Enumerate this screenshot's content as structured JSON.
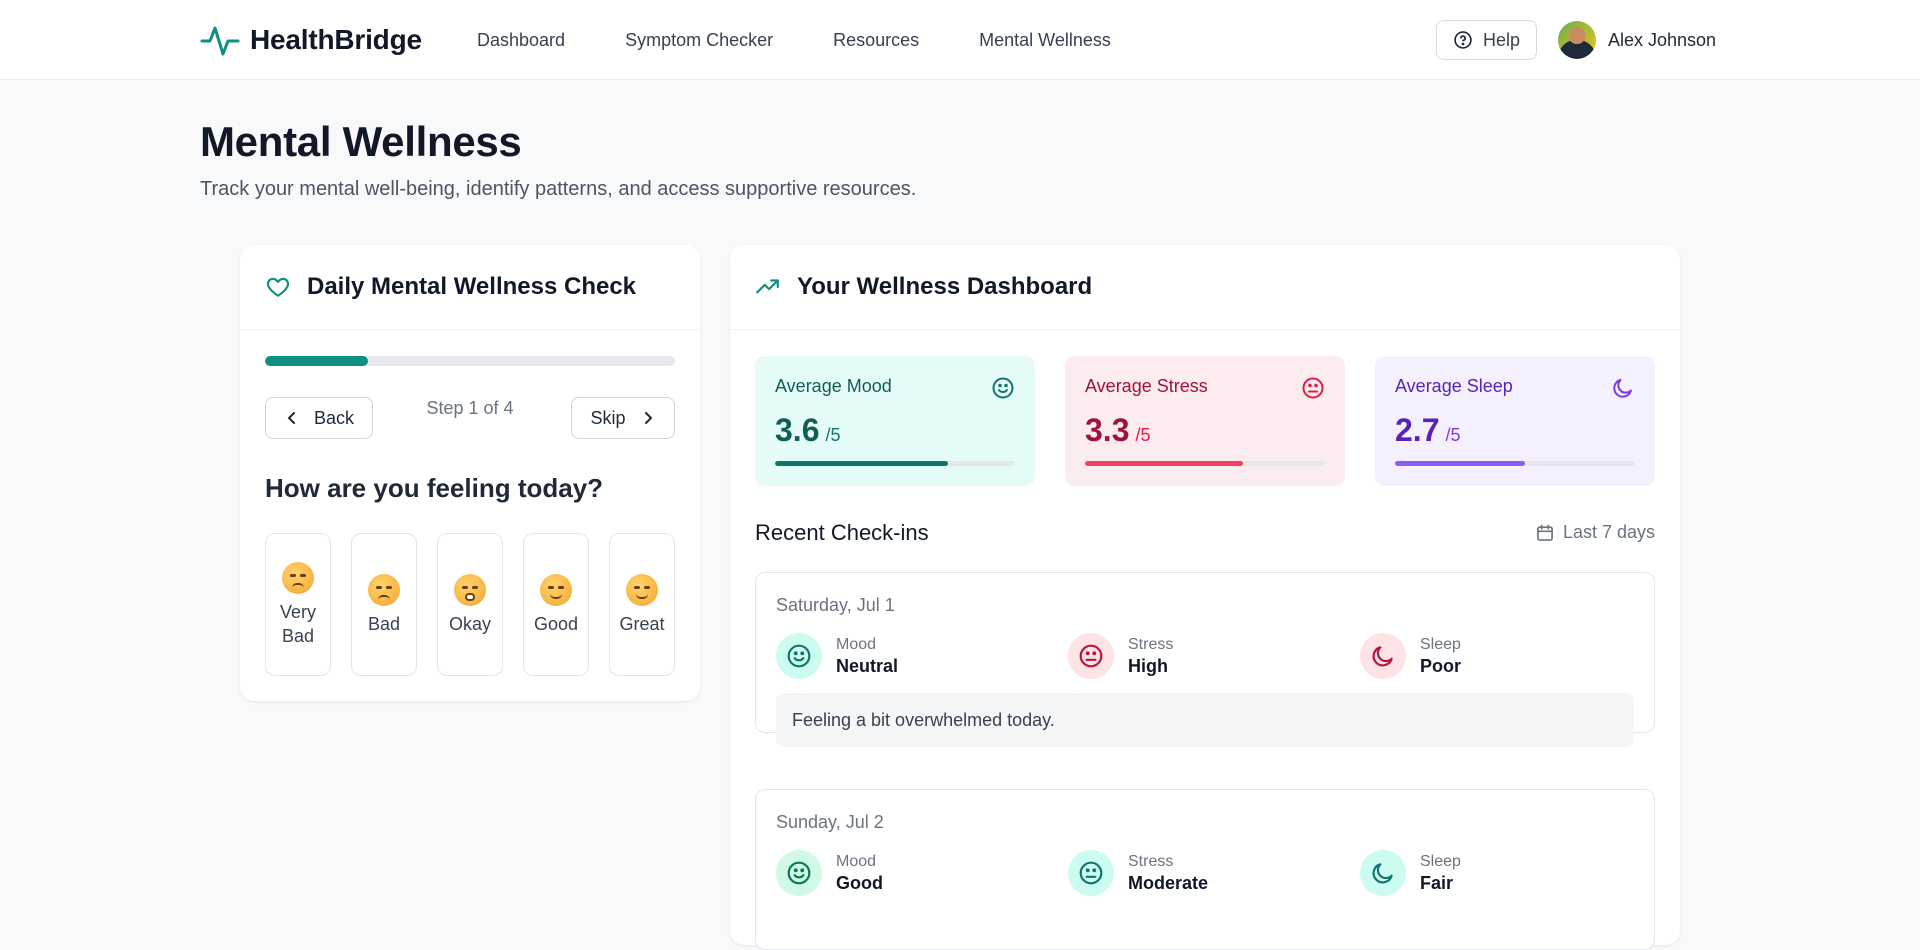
{
  "header": {
    "brand": "HealthBridge",
    "nav": [
      "Dashboard",
      "Symptom Checker",
      "Resources",
      "Mental Wellness"
    ],
    "help_label": "Help",
    "user_name": "Alex Johnson"
  },
  "page": {
    "title": "Mental Wellness",
    "subtitle": "Track your mental well-being, identify patterns, and access supportive resources."
  },
  "check_card": {
    "title": "Daily Mental Wellness Check",
    "progress_fraction": 0.25,
    "back_label": "Back",
    "skip_label": "Skip",
    "step_text": "Step 1 of 4",
    "question": "How are you feeling today?",
    "mood_options": [
      {
        "label": "Very Bad",
        "icon": "sad-face-icon"
      },
      {
        "label": "Bad",
        "icon": "sad-face-icon"
      },
      {
        "label": "Okay",
        "icon": "surprised-face-icon"
      },
      {
        "label": "Good",
        "icon": "smiling-face-icon"
      },
      {
        "label": "Great",
        "icon": "smiling-face-icon"
      }
    ]
  },
  "dashboard": {
    "title": "Your Wellness Dashboard",
    "stats": [
      {
        "label": "Average Mood",
        "value": "3.6",
        "denominator": "/5",
        "fraction": 0.72,
        "icon": "smile-icon",
        "bg": "#e5fbf7",
        "fg": "#115e59",
        "accent": "#0f766e",
        "bar": "#0f766e"
      },
      {
        "label": "Average Stress",
        "value": "3.3",
        "denominator": "/5",
        "fraction": 0.66,
        "icon": "neutral-face-icon",
        "bg": "#fdecef",
        "fg": "#9f1239",
        "accent": "#e11d48",
        "bar": "#f43f5e"
      },
      {
        "label": "Average Sleep",
        "value": "2.7",
        "denominator": "/5",
        "fraction": 0.54,
        "icon": "moon-icon",
        "bg": "#f4f0fe",
        "fg": "#5b21b6",
        "accent": "#7c3aed",
        "bar": "#8b5cf6"
      }
    ],
    "recent_title": "Recent Check-ins",
    "range_label": "Last 7 days",
    "checkins": [
      {
        "date": "Saturday, Jul 1",
        "mood_label": "Mood",
        "mood_value": "Neutral",
        "stress_label": "Stress",
        "stress_value": "High",
        "sleep_label": "Sleep",
        "sleep_value": "Poor",
        "note": "Feeling a bit overwhelmed today."
      },
      {
        "date": "Sunday, Jul 2",
        "mood_label": "Mood",
        "mood_value": "Good",
        "stress_label": "Stress",
        "stress_value": "Moderate",
        "sleep_label": "Sleep",
        "sleep_value": "Fair",
        "note": ""
      }
    ]
  }
}
